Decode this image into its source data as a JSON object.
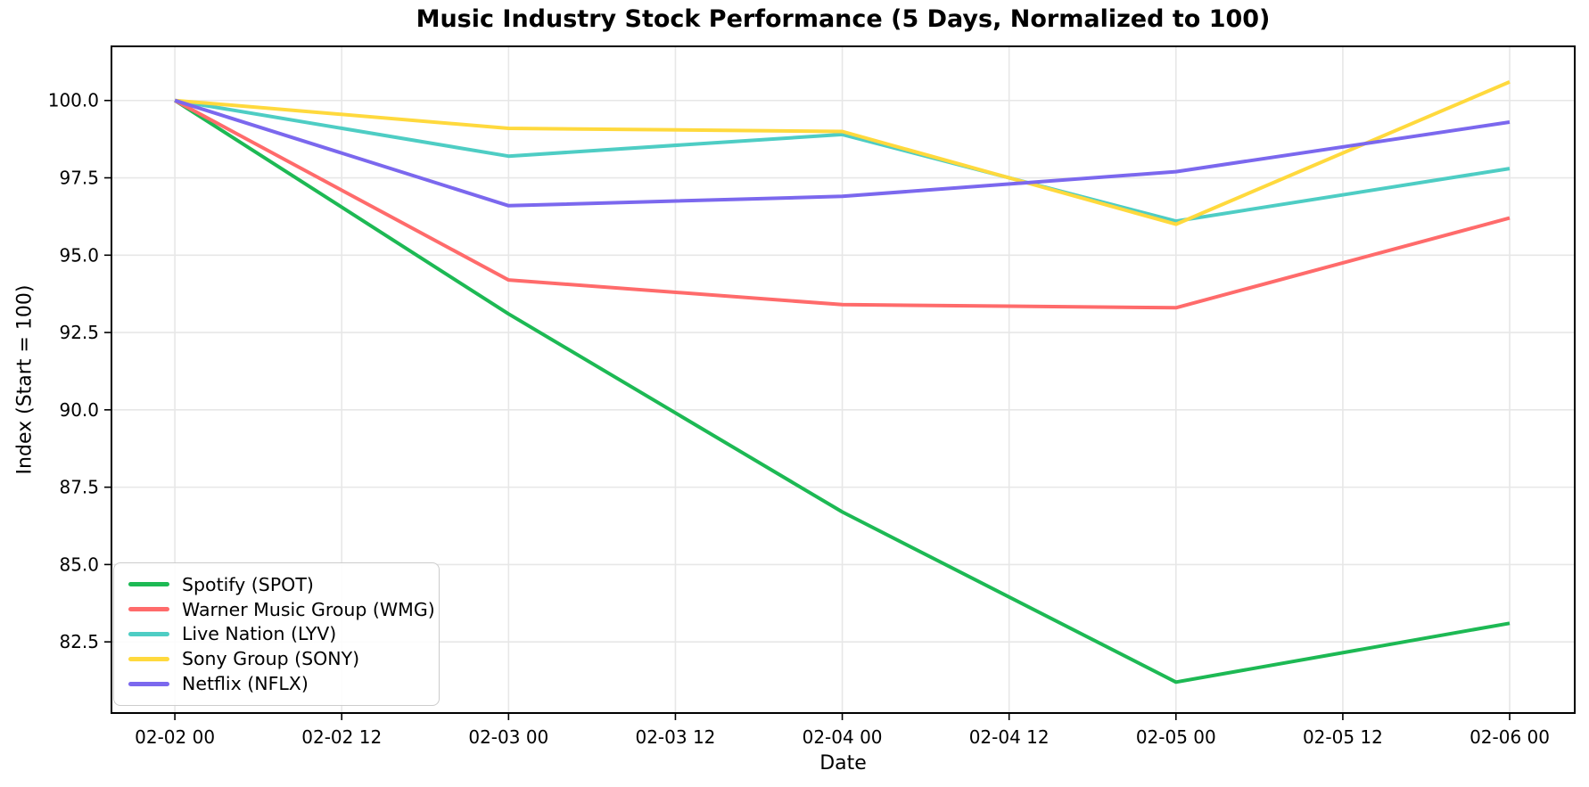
{
  "chart_data": {
    "type": "line",
    "title": "Music Industry Stock Performance (5 Days, Normalized to 100)",
    "xlabel": "Date",
    "ylabel": "Index (Start = 100)",
    "grid": true,
    "legend_position": "lower left",
    "x": [
      0,
      1,
      2,
      3,
      4
    ],
    "x_dates": [
      "02-02 00",
      "02-03 00",
      "02-04 00",
      "02-05 00",
      "02-06 00"
    ],
    "xlim": [
      -0.19,
      4.195
    ],
    "ylim": [
      80.2,
      101.75
    ],
    "xticks": [
      {
        "pos": 0.0,
        "label": "02-02 00"
      },
      {
        "pos": 0.5,
        "label": "02-02 12"
      },
      {
        "pos": 1.0,
        "label": "02-03 00"
      },
      {
        "pos": 1.5,
        "label": "02-03 12"
      },
      {
        "pos": 2.0,
        "label": "02-04 00"
      },
      {
        "pos": 2.5,
        "label": "02-04 12"
      },
      {
        "pos": 3.0,
        "label": "02-05 00"
      },
      {
        "pos": 3.5,
        "label": "02-05 12"
      },
      {
        "pos": 4.0,
        "label": "02-06 00"
      }
    ],
    "yticks": [
      {
        "pos": 82.5,
        "label": "82.5"
      },
      {
        "pos": 85.0,
        "label": "85.0"
      },
      {
        "pos": 87.5,
        "label": "87.5"
      },
      {
        "pos": 90.0,
        "label": "90.0"
      },
      {
        "pos": 92.5,
        "label": "92.5"
      },
      {
        "pos": 95.0,
        "label": "95.0"
      },
      {
        "pos": 97.5,
        "label": "97.5"
      },
      {
        "pos": 100.0,
        "label": "100.0"
      }
    ],
    "series": [
      {
        "name": "Spotify (SPOT)",
        "color": "#1DB954",
        "values": [
          100.0,
          93.1,
          86.7,
          81.2,
          83.1
        ]
      },
      {
        "name": "Warner Music Group (WMG)",
        "color": "#FF6B6B",
        "values": [
          100.0,
          94.2,
          93.4,
          93.3,
          96.2
        ]
      },
      {
        "name": "Live Nation (LYV)",
        "color": "#4ECDC4",
        "values": [
          100.0,
          98.2,
          98.9,
          96.1,
          97.8
        ]
      },
      {
        "name": "Sony Group (SONY)",
        "color": "#FFD93D",
        "values": [
          100.0,
          99.1,
          99.0,
          96.0,
          100.6
        ]
      },
      {
        "name": "Netflix (NFLX)",
        "color": "#7B68EE",
        "values": [
          100.0,
          96.6,
          96.9,
          97.7,
          99.3
        ]
      }
    ],
    "line_width": 4
  }
}
